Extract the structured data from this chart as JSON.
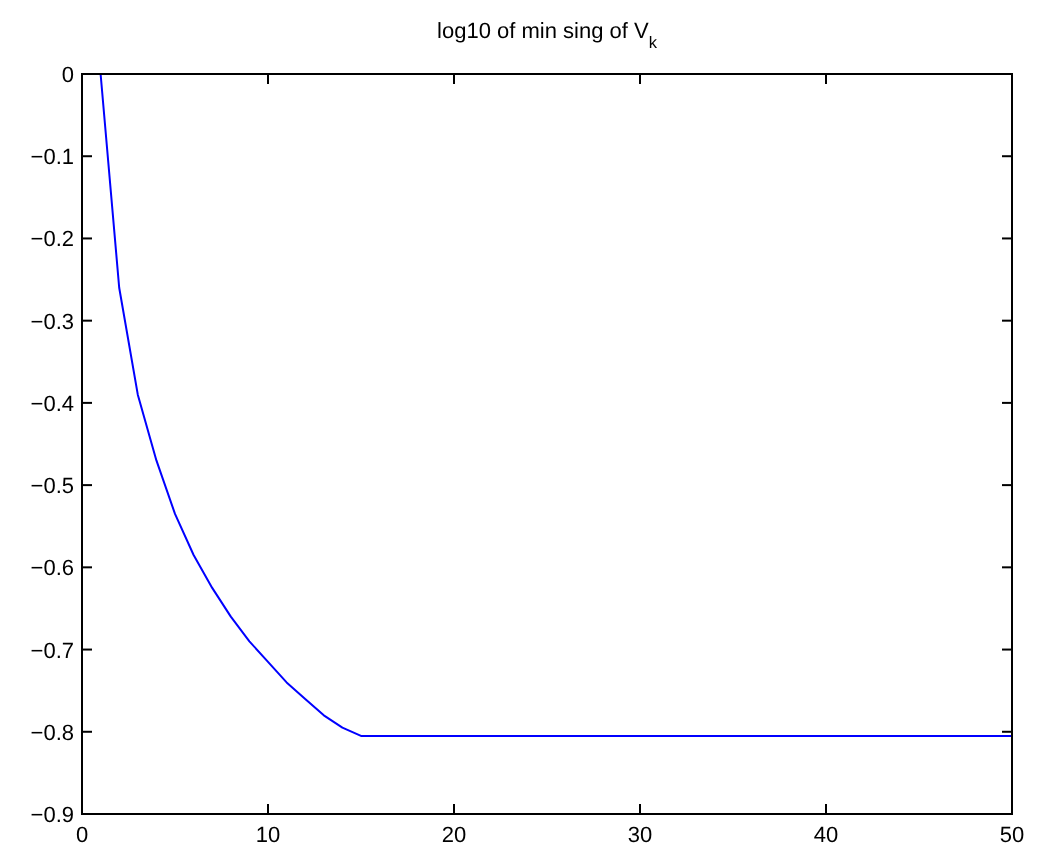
{
  "chart_data": {
    "type": "line",
    "title": "log10 of min sing of V$_{k}$",
    "x": [
      1,
      2,
      3,
      4,
      5,
      6,
      7,
      8,
      9,
      10,
      11,
      12,
      13,
      14,
      15,
      50
    ],
    "series": [
      {
        "color": "#0000ff",
        "values": [
          0,
          -0.26,
          -0.39,
          -0.47,
          -0.535,
          -0.585,
          -0.625,
          -0.66,
          -0.69,
          -0.715,
          -0.74,
          -0.76,
          -0.78,
          -0.795,
          -0.805,
          -0.805
        ]
      }
    ],
    "xlim": [
      0,
      50
    ],
    "xticks": [
      0,
      10,
      20,
      30,
      40,
      50
    ],
    "ylim": [
      -0.9,
      0
    ],
    "yticks": [
      -0.9,
      -0.8,
      -0.7,
      -0.6,
      -0.5,
      -0.4,
      -0.3,
      -0.2,
      -0.1,
      0
    ],
    "grid": false,
    "marker": "none",
    "line_style": "solid"
  }
}
